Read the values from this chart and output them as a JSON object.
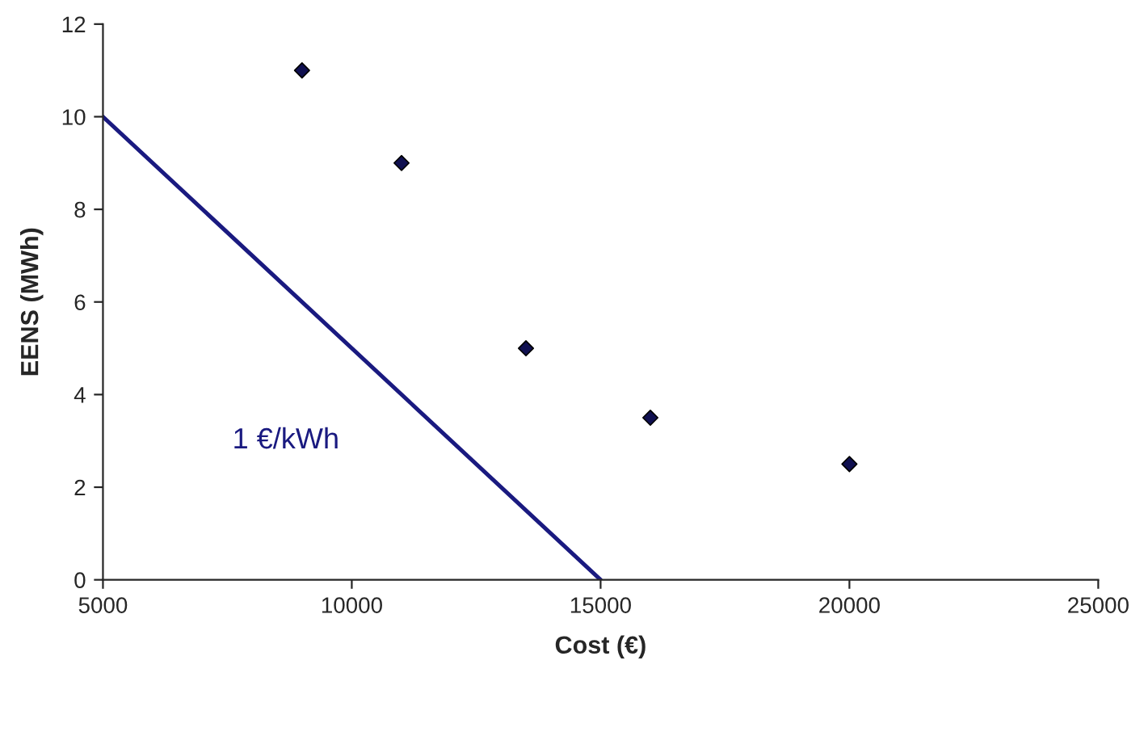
{
  "chart_data": {
    "type": "scatter",
    "xlabel": "Cost (€)",
    "ylabel": "EENS (MWh)",
    "xlim": [
      5000,
      25000
    ],
    "xticks": [
      5000,
      10000,
      15000,
      20000,
      25000
    ],
    "ylim": [
      0,
      12
    ],
    "yticks": [
      0,
      2,
      4,
      6,
      8,
      10,
      12
    ],
    "grid": false,
    "legend": false,
    "marker": "diamond",
    "series": [
      {
        "color": "#101050",
        "x": [
          9000,
          11000,
          13500,
          16000,
          20000
        ],
        "values": [
          11,
          9,
          5,
          3.5,
          2.5
        ]
      },
      {
        "type": "line",
        "marker": "none",
        "color": "#1a1a80",
        "x": [
          5000,
          15000
        ],
        "values": [
          10,
          0
        ]
      }
    ],
    "annotations": [
      "1 €/kWh"
    ]
  }
}
